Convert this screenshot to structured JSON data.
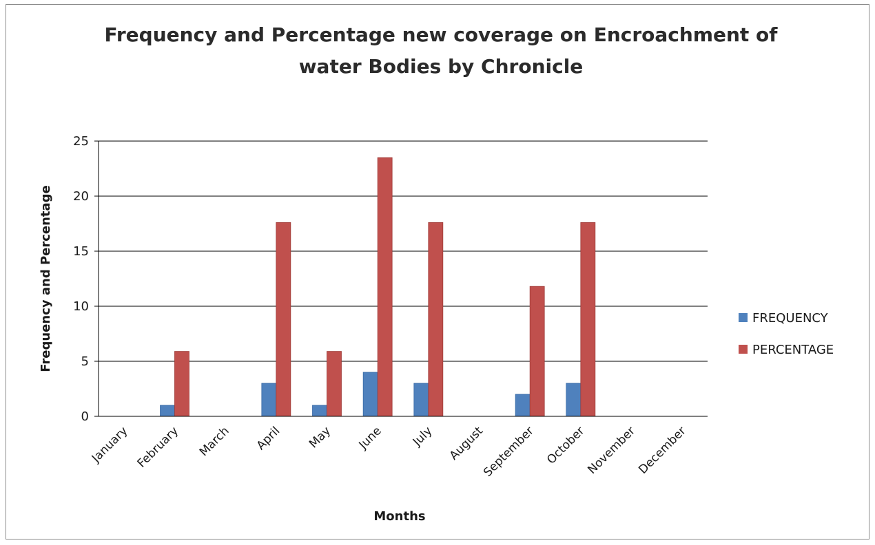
{
  "colors": {
    "frequency": "#4f81bd",
    "percentage": "#c0504d",
    "gridline": "#000000",
    "text": "#1a1a1a"
  },
  "chart_data": {
    "type": "bar",
    "title": "Frequency and Percentage new coverage on Encroachment of water Bodies by Chronicle",
    "title_lines": [
      "Frequency and Percentage new coverage on Encroachment of",
      "water Bodies by Chronicle"
    ],
    "xlabel": "Months",
    "ylabel": "Frequency and Percentage",
    "ylim": [
      0,
      25
    ],
    "yticks": [
      "0",
      "5",
      "10",
      "15",
      "20",
      "25"
    ],
    "grid": true,
    "legend_position": "right",
    "categories": [
      "January",
      "February",
      "March",
      "April",
      "May",
      "June",
      "July",
      "August",
      "September",
      "October",
      "November",
      "December"
    ],
    "series": [
      {
        "name": "FREQUENCY",
        "values": [
          0,
          1,
          0,
          3,
          1,
          4,
          3,
          0,
          2,
          3,
          0,
          0
        ]
      },
      {
        "name": "PERCENTAGE",
        "values": [
          0,
          5.9,
          0,
          17.6,
          5.9,
          23.5,
          17.6,
          0,
          11.8,
          17.6,
          0,
          0
        ]
      }
    ]
  }
}
